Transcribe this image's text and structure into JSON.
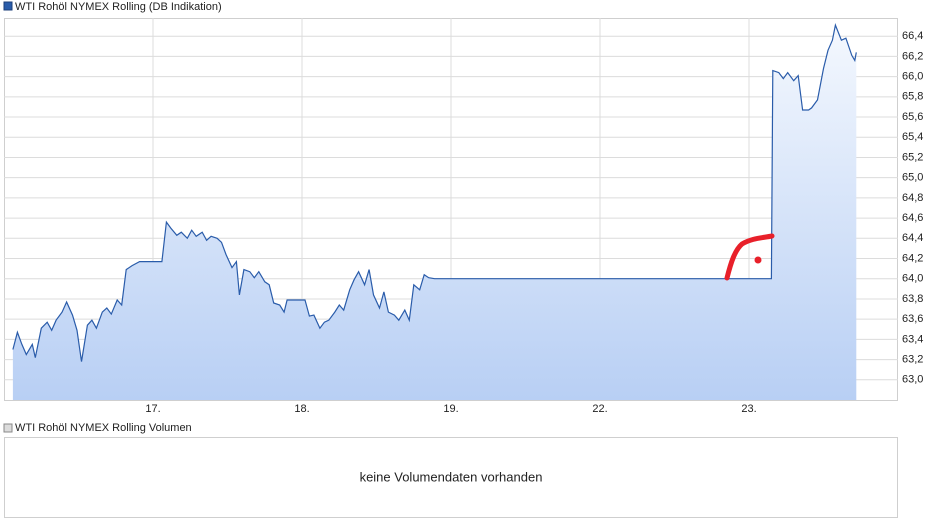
{
  "chart_data": {
    "type": "line",
    "title": "WTI Rohöl NYMEX Rolling (DB Indikation)",
    "xlim": [
      0,
      6
    ],
    "xticks": [
      {
        "value": 1,
        "label": "17."
      },
      {
        "value": 2,
        "label": "18."
      },
      {
        "value": 3,
        "label": "19."
      },
      {
        "value": 4,
        "label": "22."
      },
      {
        "value": 5,
        "label": "23."
      }
    ],
    "ylim": [
      62.8,
      66.58
    ],
    "yticks": [
      {
        "value": 63.0,
        "label": "63,0"
      },
      {
        "value": 63.2,
        "label": "63,2"
      },
      {
        "value": 63.4,
        "label": "63,4"
      },
      {
        "value": 63.6,
        "label": "63,6"
      },
      {
        "value": 63.8,
        "label": "63,8"
      },
      {
        "value": 64.0,
        "label": "64,0"
      },
      {
        "value": 64.2,
        "label": "64,2"
      },
      {
        "value": 64.4,
        "label": "64,4"
      },
      {
        "value": 64.6,
        "label": "64,6"
      },
      {
        "value": 64.8,
        "label": "64,8"
      },
      {
        "value": 65.0,
        "label": "65,0"
      },
      {
        "value": 65.2,
        "label": "65,2"
      },
      {
        "value": 65.4,
        "label": "65,4"
      },
      {
        "value": 65.6,
        "label": "65,6"
      },
      {
        "value": 65.8,
        "label": "65,8"
      },
      {
        "value": 66.0,
        "label": "66,0"
      },
      {
        "value": 66.2,
        "label": "66,2"
      },
      {
        "value": 66.4,
        "label": "66,4"
      }
    ],
    "grid": true,
    "y_axis_side": "right",
    "series": [
      {
        "name": "WTI Rohöl NYMEX Rolling (DB Indikation)",
        "color": "#2a5caa",
        "x": [
          0.06,
          0.09,
          0.12,
          0.15,
          0.19,
          0.21,
          0.25,
          0.29,
          0.32,
          0.35,
          0.39,
          0.42,
          0.46,
          0.49,
          0.52,
          0.56,
          0.59,
          0.62,
          0.66,
          0.69,
          0.72,
          0.76,
          0.79,
          0.82,
          0.86,
          0.91,
          1.06,
          1.09,
          1.12,
          1.16,
          1.19,
          1.23,
          1.26,
          1.29,
          1.33,
          1.36,
          1.39,
          1.43,
          1.46,
          1.49,
          1.53,
          1.56,
          1.58,
          1.61,
          1.65,
          1.68,
          1.71,
          1.75,
          1.78,
          1.81,
          1.85,
          1.88,
          1.9,
          2.02,
          2.05,
          2.08,
          2.12,
          2.15,
          2.18,
          2.22,
          2.25,
          2.28,
          2.32,
          2.35,
          2.38,
          2.42,
          2.45,
          2.48,
          2.52,
          2.55,
          2.58,
          2.62,
          2.65,
          2.69,
          2.72,
          2.75,
          2.79,
          2.82,
          2.85,
          2.89,
          5.15,
          5.16,
          5.2,
          5.23,
          5.26,
          5.3,
          5.33,
          5.36,
          5.4,
          5.42,
          5.46,
          5.5,
          5.53,
          5.56,
          5.58,
          5.62,
          5.65,
          5.69,
          5.71,
          5.72
        ],
        "values": [
          63.3,
          63.47,
          63.35,
          63.25,
          63.35,
          63.22,
          63.51,
          63.57,
          63.49,
          63.59,
          63.67,
          63.77,
          63.64,
          63.49,
          63.18,
          63.54,
          63.59,
          63.51,
          63.67,
          63.71,
          63.65,
          63.79,
          63.74,
          64.09,
          64.13,
          64.17,
          64.17,
          64.56,
          64.5,
          64.43,
          64.46,
          64.4,
          64.48,
          64.42,
          64.46,
          64.38,
          64.42,
          64.4,
          64.36,
          64.24,
          64.11,
          64.17,
          63.84,
          64.09,
          64.07,
          64.01,
          64.07,
          63.97,
          63.94,
          63.76,
          63.74,
          63.67,
          63.79,
          63.79,
          63.63,
          63.64,
          63.51,
          63.57,
          63.59,
          63.67,
          63.74,
          63.69,
          63.89,
          63.99,
          64.07,
          63.94,
          64.09,
          63.84,
          63.71,
          63.87,
          63.67,
          63.64,
          63.59,
          63.69,
          63.59,
          63.94,
          63.89,
          64.04,
          64.01,
          64.0,
          64.0,
          66.06,
          66.04,
          65.98,
          66.04,
          65.96,
          66.01,
          65.67,
          65.67,
          65.69,
          65.77,
          66.08,
          66.26,
          66.36,
          66.51,
          66.36,
          66.38,
          66.21,
          66.16,
          66.24
        ]
      }
    ]
  },
  "volume_chart": {
    "legend": "WTI Rohöl NYMEX Rolling Volumen",
    "message": "keine Volumendaten vorhanden"
  }
}
